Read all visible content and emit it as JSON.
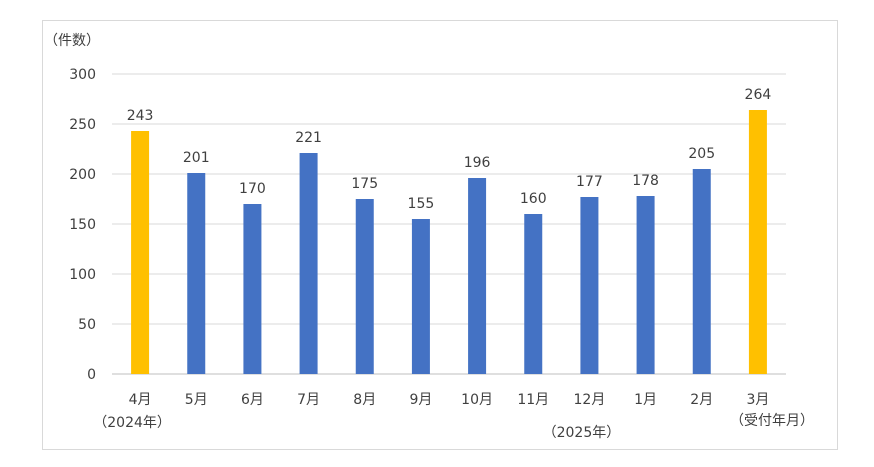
{
  "chart_data": {
    "type": "bar",
    "ylabel": "（件数）",
    "xlabel": "（受付年月）",
    "ylim": [
      0,
      300
    ],
    "yticks": [
      0,
      50,
      100,
      150,
      200,
      250,
      300
    ],
    "grid": true,
    "categories": [
      "4月",
      "5月",
      "6月",
      "7月",
      "8月",
      "9月",
      "10月",
      "11月",
      "12月",
      "1月",
      "2月",
      "3月"
    ],
    "values": [
      243,
      201,
      170,
      221,
      175,
      155,
      196,
      160,
      177,
      178,
      205,
      264
    ],
    "bar_colors": [
      "#ffc000",
      "#4472c4",
      "#4472c4",
      "#4472c4",
      "#4472c4",
      "#4472c4",
      "#4472c4",
      "#4472c4",
      "#4472c4",
      "#4472c4",
      "#4472c4",
      "#ffc000"
    ],
    "annotations": [
      {
        "text": "（2024年）",
        "under_category": "4月"
      },
      {
        "text": "（2025年）",
        "under_category": "12月"
      }
    ],
    "colors": {
      "highlight": "#ffc000",
      "regular": "#4472c4",
      "grid": "#d9d9d9",
      "text": "#404040"
    }
  }
}
